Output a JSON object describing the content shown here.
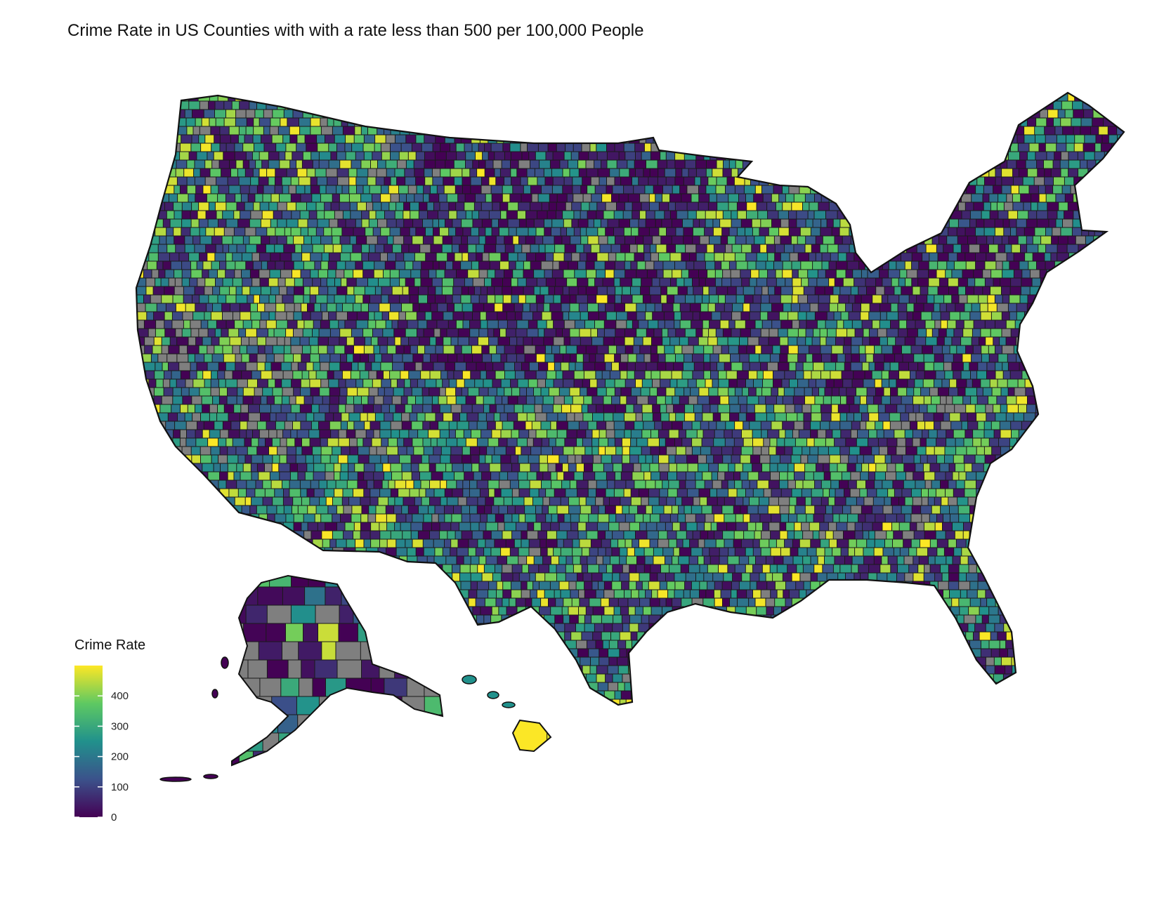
{
  "title": "Crime Rate in US Counties with with a rate less than 500 per 100,000 People",
  "legend": {
    "title": "Crime Rate",
    "ticks": [
      {
        "value": 0,
        "label": "0"
      },
      {
        "value": 100,
        "label": "100"
      },
      {
        "value": 200,
        "label": "200"
      },
      {
        "value": 300,
        "label": "300"
      },
      {
        "value": 400,
        "label": "400"
      }
    ],
    "min": 0,
    "max": 500,
    "colors": [
      "#440154",
      "#3b528b",
      "#21918c",
      "#5ec962",
      "#fde725"
    ],
    "na_color": "#7f7f7f"
  },
  "map": {
    "regions": [
      "contiguous-us",
      "alaska",
      "hawaii"
    ],
    "border_color": "#111111"
  }
}
